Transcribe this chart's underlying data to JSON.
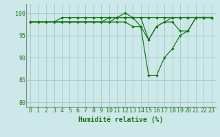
{
  "xlabel": "Humidité relative (%)",
  "ylabel": "",
  "background_color": "#cce8e8",
  "grid_color": "#aacccc",
  "line_color": "#1a7a1a",
  "marker_color": "#1a7a1a",
  "xlim": [
    -0.5,
    23.5
  ],
  "ylim": [
    79,
    102
  ],
  "yticks": [
    80,
    85,
    90,
    95,
    100
  ],
  "xticks": [
    0,
    1,
    2,
    3,
    4,
    5,
    6,
    7,
    8,
    9,
    10,
    11,
    12,
    13,
    14,
    15,
    16,
    17,
    18,
    19,
    20,
    21,
    22,
    23
  ],
  "series": [
    [
      98,
      98,
      98,
      98,
      98,
      98,
      98,
      98,
      98,
      98,
      98,
      99,
      100,
      99,
      97,
      86,
      86,
      90,
      92,
      95,
      96,
      99,
      99,
      99
    ],
    [
      98,
      98,
      98,
      98,
      99,
      99,
      99,
      99,
      99,
      99,
      99,
      99,
      99,
      99,
      99,
      94,
      97,
      98,
      99,
      99,
      99,
      99,
      99,
      99
    ],
    [
      98,
      98,
      98,
      98,
      98,
      98,
      98,
      98,
      98,
      98,
      98,
      98,
      98,
      97,
      97,
      94,
      97,
      98,
      98,
      96,
      96,
      99,
      99,
      99
    ],
    [
      98,
      98,
      98,
      98,
      98,
      98,
      98,
      98,
      98,
      98,
      99,
      99,
      99,
      99,
      99,
      99,
      99,
      99,
      99,
      99,
      99,
      99,
      99,
      99
    ]
  ],
  "xlabel_fontsize": 7,
  "tick_fontsize": 6,
  "spine_color": "#888888"
}
